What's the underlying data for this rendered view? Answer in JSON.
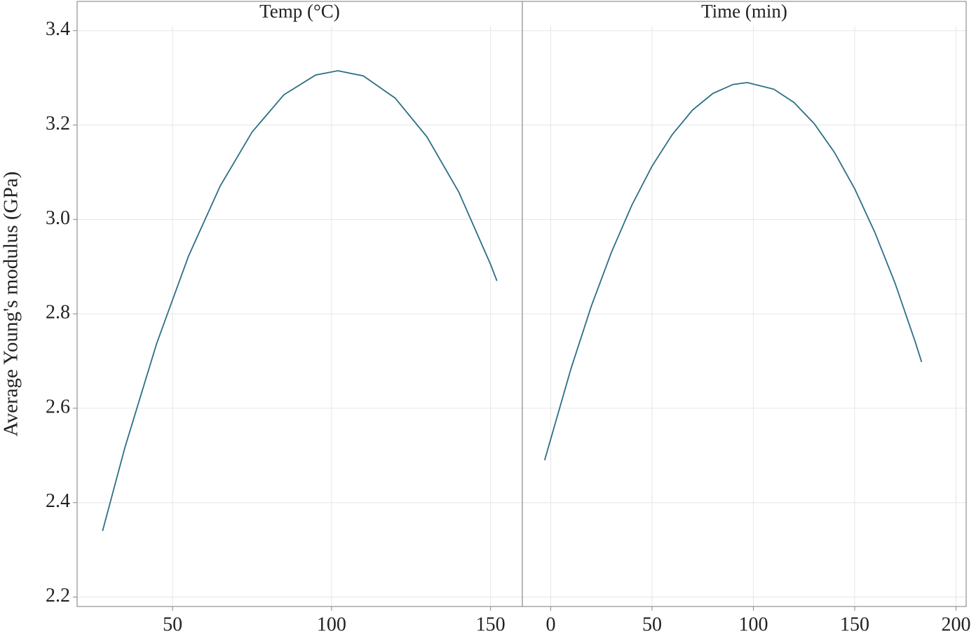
{
  "chart_data": [
    {
      "type": "line",
      "title": "Temp (°C)",
      "ylabel": "Average Young's modulus (GPa)",
      "x": [
        28,
        35,
        45,
        55,
        65,
        75,
        85,
        95,
        102,
        110,
        120,
        130,
        140,
        150,
        152
      ],
      "series": [
        {
          "color": "#2b6f86",
          "values": [
            2.34,
            2.516,
            2.737,
            2.922,
            3.071,
            3.185,
            3.264,
            3.306,
            3.315,
            3.304,
            3.257,
            3.175,
            3.058,
            2.905,
            2.87
          ]
        }
      ],
      "xlim": [
        20,
        160
      ],
      "xticks": [
        50,
        100,
        150
      ],
      "ylim": [
        2.18,
        3.41
      ],
      "yticks": [
        2.2,
        2.4,
        2.6,
        2.8,
        {
          "value": 3.0,
          "label": "3.0"
        },
        3.2,
        3.4
      ],
      "grid": true
    },
    {
      "type": "line",
      "title": "Time (min)",
      "x": [
        -3,
        10,
        20,
        30,
        40,
        50,
        60,
        70,
        80,
        90,
        97,
        110,
        120,
        130,
        140,
        150,
        160,
        170,
        180,
        183
      ],
      "series": [
        {
          "color": "#2b6f86",
          "values": [
            2.49,
            2.684,
            2.816,
            2.931,
            3.03,
            3.113,
            3.18,
            3.232,
            3.267,
            3.286,
            3.29,
            3.276,
            3.248,
            3.203,
            3.142,
            3.065,
            2.972,
            2.864,
            2.739,
            2.698
          ]
        }
      ],
      "xlim": [
        -14,
        205
      ],
      "xticks": [
        0,
        50,
        100,
        150,
        200
      ],
      "ylim": [
        2.18,
        3.41
      ],
      "yticks": [
        2.2,
        2.4,
        2.6,
        2.8,
        3.0,
        3.2,
        3.4
      ],
      "grid": true
    }
  ]
}
